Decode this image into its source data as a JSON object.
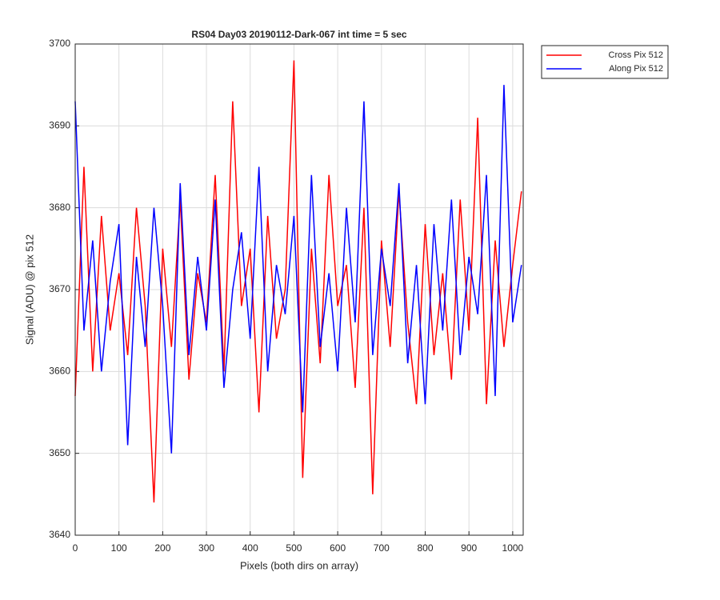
{
  "chart_data": {
    "type": "line",
    "title": "RS04 Day03 20190112-Dark-067 int time = 5 sec",
    "xlabel": "Pixels (both dirs on array)",
    "ylabel": "Signal (ADU) @ pix 512",
    "x": [
      0,
      20,
      40,
      60,
      80,
      100,
      120,
      140,
      160,
      180,
      200,
      220,
      240,
      260,
      280,
      300,
      320,
      340,
      360,
      380,
      400,
      420,
      440,
      460,
      480,
      500,
      520,
      540,
      560,
      580,
      600,
      620,
      640,
      660,
      680,
      700,
      720,
      740,
      760,
      780,
      800,
      820,
      840,
      860,
      880,
      900,
      920,
      940,
      960,
      980,
      1000,
      1020
    ],
    "series": [
      {
        "name": "Cross Pix 512",
        "color": "#ff0000",
        "values": [
          3657,
          3685,
          3660,
          3679,
          3665,
          3672,
          3662,
          3680,
          3668,
          3644,
          3675,
          3663,
          3681,
          3659,
          3672,
          3666,
          3684,
          3660,
          3693,
          3668,
          3675,
          3655,
          3679,
          3664,
          3670,
          3698,
          3647,
          3675,
          3661,
          3684,
          3668,
          3673,
          3658,
          3680,
          3645,
          3676,
          3663,
          3682,
          3666,
          3656,
          3678,
          3662,
          3672,
          3659,
          3681,
          3665,
          3691,
          3656,
          3676,
          3663,
          3673,
          3682
        ]
      },
      {
        "name": "Along Pix 512",
        "color": "#0000ff",
        "values": [
          3693,
          3665,
          3676,
          3660,
          3671,
          3678,
          3651,
          3674,
          3663,
          3680,
          3668,
          3650,
          3683,
          3662,
          3674,
          3665,
          3681,
          3658,
          3670,
          3677,
          3664,
          3685,
          3660,
          3673,
          3667,
          3679,
          3655,
          3684,
          3663,
          3672,
          3660,
          3680,
          3666,
          3693,
          3662,
          3675,
          3668,
          3683,
          3661,
          3673,
          3656,
          3678,
          3665,
          3681,
          3662,
          3674,
          3667,
          3684,
          3657,
          3695,
          3666,
          3673
        ]
      }
    ],
    "xlim": [
      0,
      1024
    ],
    "xticks": [
      0,
      100,
      200,
      300,
      400,
      500,
      600,
      700,
      800,
      900,
      1000
    ],
    "ylim": [
      3640,
      3700
    ],
    "yticks": [
      3640,
      3650,
      3660,
      3670,
      3680,
      3690,
      3700
    ],
    "grid": true,
    "legend": "outside-top-right"
  }
}
